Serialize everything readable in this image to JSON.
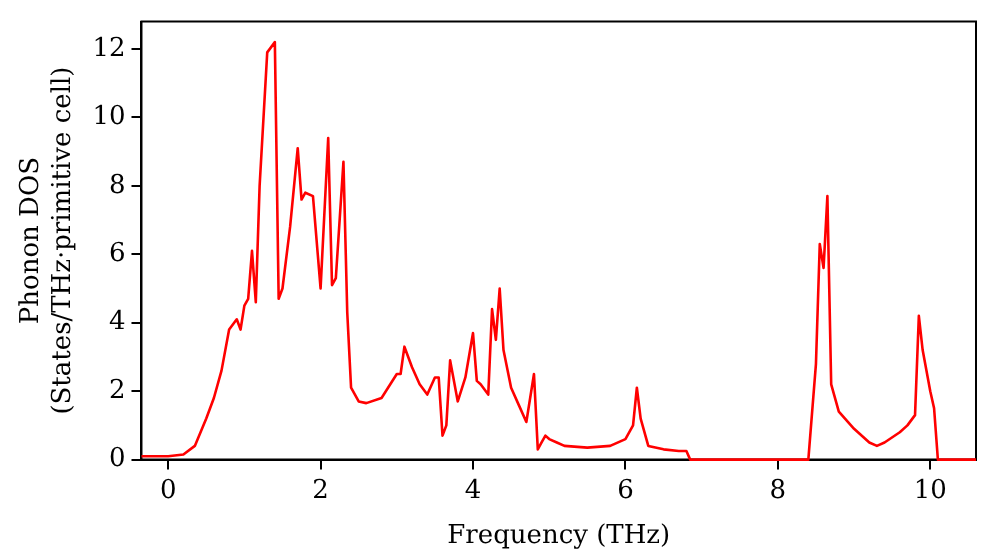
{
  "chart_data": {
    "type": "line",
    "xlabel": "Frequency (THz)",
    "ylabel": "Phonon DOS\n(States/THz·primitive cell)",
    "xlim": [
      -0.35,
      10.6
    ],
    "ylim": [
      0,
      12.8
    ],
    "xticks": [
      0,
      2,
      4,
      6,
      8,
      10
    ],
    "yticks": [
      0,
      2,
      4,
      6,
      8,
      10,
      12
    ],
    "grid": false,
    "legend": false,
    "marker": "none",
    "line_style": "solid",
    "x": [
      -0.35,
      0,
      0.2,
      0.35,
      0.5,
      0.6,
      0.7,
      0.8,
      0.9,
      0.95,
      1.0,
      1.05,
      1.1,
      1.15,
      1.2,
      1.3,
      1.4,
      1.45,
      1.5,
      1.6,
      1.7,
      1.75,
      1.8,
      1.9,
      2.0,
      2.1,
      2.15,
      2.2,
      2.3,
      2.35,
      2.4,
      2.5,
      2.6,
      2.8,
      3.0,
      3.05,
      3.1,
      3.2,
      3.3,
      3.4,
      3.5,
      3.55,
      3.6,
      3.65,
      3.7,
      3.8,
      3.9,
      4.0,
      4.05,
      4.1,
      4.2,
      4.25,
      4.3,
      4.35,
      4.4,
      4.5,
      4.6,
      4.7,
      4.8,
      4.85,
      4.9,
      4.95,
      5.0,
      5.1,
      5.2,
      5.5,
      5.8,
      6.0,
      6.1,
      6.15,
      6.2,
      6.3,
      6.5,
      6.7,
      6.8,
      6.85,
      7.0,
      8.0,
      8.4,
      8.5,
      8.55,
      8.6,
      8.65,
      8.7,
      8.8,
      9.0,
      9.2,
      9.3,
      9.4,
      9.6,
      9.7,
      9.8,
      9.85,
      9.9,
      10.0,
      10.05,
      10.1,
      10.3,
      10.6
    ],
    "values": [
      0.1,
      0.1,
      0.15,
      0.4,
      1.2,
      1.8,
      2.6,
      3.8,
      4.1,
      3.8,
      4.5,
      4.7,
      6.1,
      4.6,
      8.0,
      11.9,
      12.2,
      4.7,
      5.0,
      6.8,
      9.1,
      7.6,
      7.8,
      7.7,
      5.0,
      9.4,
      5.1,
      5.3,
      8.7,
      4.3,
      2.1,
      1.7,
      1.65,
      1.8,
      2.5,
      2.5,
      3.3,
      2.7,
      2.2,
      1.9,
      2.4,
      2.4,
      0.7,
      1.0,
      2.9,
      1.7,
      2.4,
      3.7,
      2.3,
      2.2,
      1.9,
      4.4,
      3.5,
      5.0,
      3.2,
      2.1,
      1.6,
      1.1,
      2.5,
      0.3,
      0.5,
      0.7,
      0.6,
      0.5,
      0.4,
      0.35,
      0.4,
      0.6,
      1.0,
      2.1,
      1.2,
      0.4,
      0.3,
      0.25,
      0.25,
      0,
      0,
      0,
      0,
      2.8,
      6.3,
      5.6,
      7.7,
      2.2,
      1.4,
      0.9,
      0.5,
      0.4,
      0.5,
      0.8,
      1.0,
      1.3,
      4.2,
      3.2,
      2.0,
      1.5,
      0,
      0,
      0
    ],
    "color": "#ff0000"
  }
}
